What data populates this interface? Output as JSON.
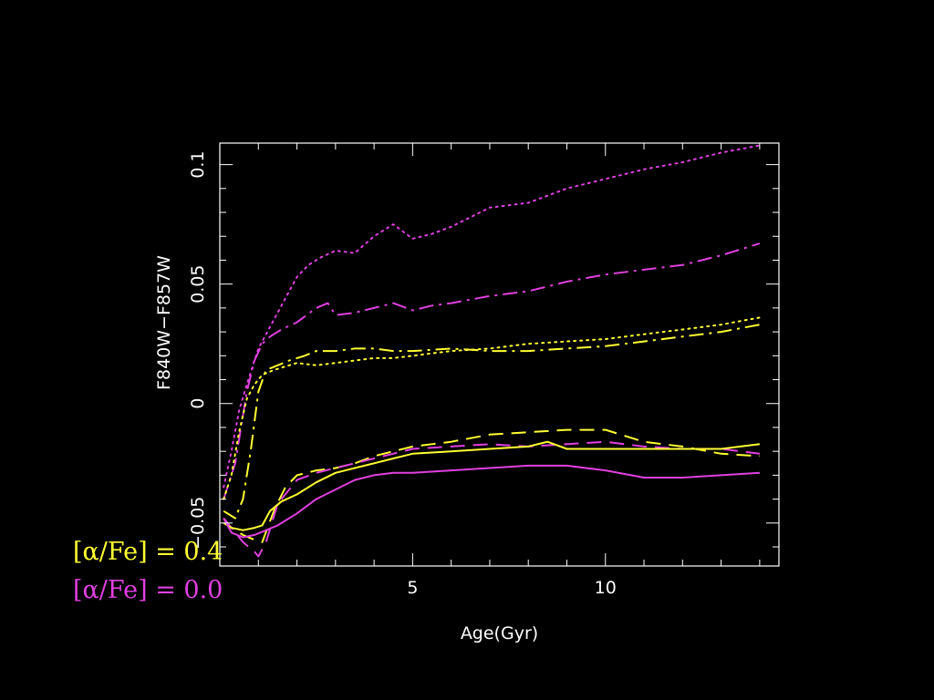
{
  "chart_data": {
    "type": "line",
    "title": "",
    "xlabel": "Age(Gyr)",
    "ylabel": "F840W−F857W",
    "xlim": [
      0,
      14.5
    ],
    "ylim": [
      -0.068,
      0.109
    ],
    "x_ticks": [
      5,
      10
    ],
    "x_tick_labels": [
      "5",
      "10"
    ],
    "y_ticks": [
      -0.05,
      0,
      0.05,
      0.1
    ],
    "y_tick_labels": [
      "−0.05",
      "0",
      "0.05",
      "0.1"
    ],
    "grid": false,
    "legend": [
      {
        "text": "[α/Fe] = 0.4",
        "color": "#ffff33"
      },
      {
        "text": "[α/Fe] = 0.0",
        "color": "#e040e0"
      }
    ],
    "colors": {
      "background": "#000000",
      "axes": "#ffffff",
      "alpha_0_4": "#ffff33",
      "alpha_0_0": "#e040e0"
    },
    "series": [
      {
        "color": "#e040e0",
        "style": "dotted",
        "x": [
          0.1,
          0.3,
          0.5,
          0.7,
          0.9,
          1.0,
          1.2,
          1.5,
          1.8,
          2.0,
          2.3,
          2.6,
          3.0,
          3.5,
          4.0,
          4.5,
          5.0,
          5.5,
          6.0,
          7.0,
          8.0,
          9.0,
          10.0,
          11.0,
          12.0,
          13.0,
          14.0
        ],
        "y": [
          -0.035,
          -0.02,
          -0.003,
          0.008,
          0.018,
          0.023,
          0.029,
          0.038,
          0.047,
          0.053,
          0.058,
          0.061,
          0.064,
          0.063,
          0.07,
          0.075,
          0.069,
          0.071,
          0.074,
          0.082,
          0.084,
          0.09,
          0.094,
          0.098,
          0.101,
          0.105,
          0.108
        ]
      },
      {
        "color": "#e040e0",
        "style": "dashdot",
        "x": [
          0.1,
          0.4,
          0.7,
          0.9,
          1.1,
          1.3,
          1.6,
          2.0,
          2.5,
          2.8,
          3.0,
          3.5,
          4.0,
          4.5,
          5.0,
          5.5,
          6.0,
          7.0,
          8.0,
          9.0,
          10.0,
          11.0,
          12.0,
          13.0,
          14.0
        ],
        "y": [
          -0.04,
          -0.025,
          0.005,
          0.018,
          0.025,
          0.028,
          0.031,
          0.034,
          0.04,
          0.042,
          0.037,
          0.038,
          0.04,
          0.042,
          0.039,
          0.041,
          0.042,
          0.045,
          0.047,
          0.051,
          0.054,
          0.056,
          0.058,
          0.062,
          0.067
        ]
      },
      {
        "color": "#ffff33",
        "style": "dotted",
        "x": [
          0.1,
          0.3,
          0.5,
          0.7,
          0.9,
          1.1,
          1.4,
          1.8,
          2.0,
          2.5,
          3.0,
          3.5,
          4.0,
          4.5,
          5.0,
          6.0,
          7.0,
          8.0,
          9.0,
          10.0,
          11.0,
          12.0,
          13.0,
          14.0
        ],
        "y": [
          -0.04,
          -0.03,
          -0.012,
          0.002,
          0.008,
          0.012,
          0.014,
          0.016,
          0.017,
          0.016,
          0.017,
          0.018,
          0.019,
          0.019,
          0.02,
          0.022,
          0.023,
          0.025,
          0.026,
          0.027,
          0.029,
          0.031,
          0.033,
          0.036
        ]
      },
      {
        "color": "#ffff33",
        "style": "dashdot",
        "x": [
          0.1,
          0.4,
          0.6,
          0.8,
          1.0,
          1.2,
          1.5,
          1.8,
          2.2,
          2.5,
          3.0,
          3.5,
          4.0,
          4.5,
          5.0,
          6.0,
          7.0,
          8.0,
          9.0,
          10.0,
          11.0,
          12.0,
          13.0,
          14.0
        ],
        "y": [
          -0.045,
          -0.048,
          -0.04,
          -0.02,
          0.005,
          0.014,
          0.016,
          0.018,
          0.02,
          0.022,
          0.022,
          0.023,
          0.023,
          0.022,
          0.022,
          0.023,
          0.022,
          0.022,
          0.023,
          0.024,
          0.026,
          0.028,
          0.03,
          0.033
        ]
      },
      {
        "color": "#ffff33",
        "style": "dashed",
        "x": [
          0.1,
          0.3,
          0.6,
          0.9,
          1.1,
          1.4,
          1.7,
          2.0,
          2.5,
          3.0,
          3.5,
          4.0,
          4.5,
          5.0,
          6.0,
          7.0,
          8.0,
          9.0,
          10.0,
          11.0,
          12.0,
          13.0,
          14.0
        ],
        "y": [
          -0.048,
          -0.052,
          -0.055,
          -0.057,
          -0.058,
          -0.045,
          -0.035,
          -0.03,
          -0.028,
          -0.027,
          -0.025,
          -0.022,
          -0.02,
          -0.018,
          -0.016,
          -0.013,
          -0.012,
          -0.011,
          -0.011,
          -0.016,
          -0.018,
          -0.021,
          -0.022
        ]
      },
      {
        "color": "#e040e0",
        "style": "dashed",
        "x": [
          0.1,
          0.3,
          0.6,
          0.9,
          1.0,
          1.2,
          1.5,
          2.0,
          2.5,
          3.0,
          3.5,
          4.0,
          4.5,
          5.0,
          6.0,
          7.0,
          8.0,
          9.0,
          10.0,
          11.0,
          12.0,
          13.0,
          14.0
        ],
        "y": [
          -0.048,
          -0.052,
          -0.058,
          -0.062,
          -0.064,
          -0.058,
          -0.042,
          -0.032,
          -0.029,
          -0.027,
          -0.025,
          -0.023,
          -0.021,
          -0.019,
          -0.018,
          -0.017,
          -0.018,
          -0.017,
          -0.016,
          -0.018,
          -0.019,
          -0.019,
          -0.021
        ]
      },
      {
        "color": "#ffff33",
        "style": "solid",
        "x": [
          0.1,
          0.3,
          0.6,
          0.9,
          1.1,
          1.3,
          1.6,
          2.0,
          2.5,
          3.0,
          3.5,
          4.0,
          4.5,
          5.0,
          6.0,
          7.0,
          8.0,
          8.5,
          9.0,
          10.0,
          11.0,
          12.0,
          13.0,
          14.0
        ],
        "y": [
          -0.05,
          -0.052,
          -0.053,
          -0.052,
          -0.051,
          -0.045,
          -0.041,
          -0.038,
          -0.033,
          -0.029,
          -0.027,
          -0.025,
          -0.023,
          -0.021,
          -0.02,
          -0.019,
          -0.018,
          -0.016,
          -0.019,
          -0.019,
          -0.019,
          -0.019,
          -0.019,
          -0.017
        ]
      },
      {
        "color": "#e040e0",
        "style": "solid",
        "x": [
          0.1,
          0.3,
          0.6,
          0.9,
          1.2,
          1.5,
          2.0,
          2.5,
          3.0,
          3.5,
          4.0,
          4.5,
          5.0,
          6.0,
          7.0,
          8.0,
          9.0,
          10.0,
          11.0,
          12.0,
          13.0,
          14.0
        ],
        "y": [
          -0.048,
          -0.054,
          -0.056,
          -0.055,
          -0.053,
          -0.051,
          -0.046,
          -0.04,
          -0.036,
          -0.032,
          -0.03,
          -0.029,
          -0.029,
          -0.028,
          -0.027,
          -0.026,
          -0.026,
          -0.028,
          -0.031,
          -0.031,
          -0.03,
          -0.029
        ]
      }
    ]
  }
}
